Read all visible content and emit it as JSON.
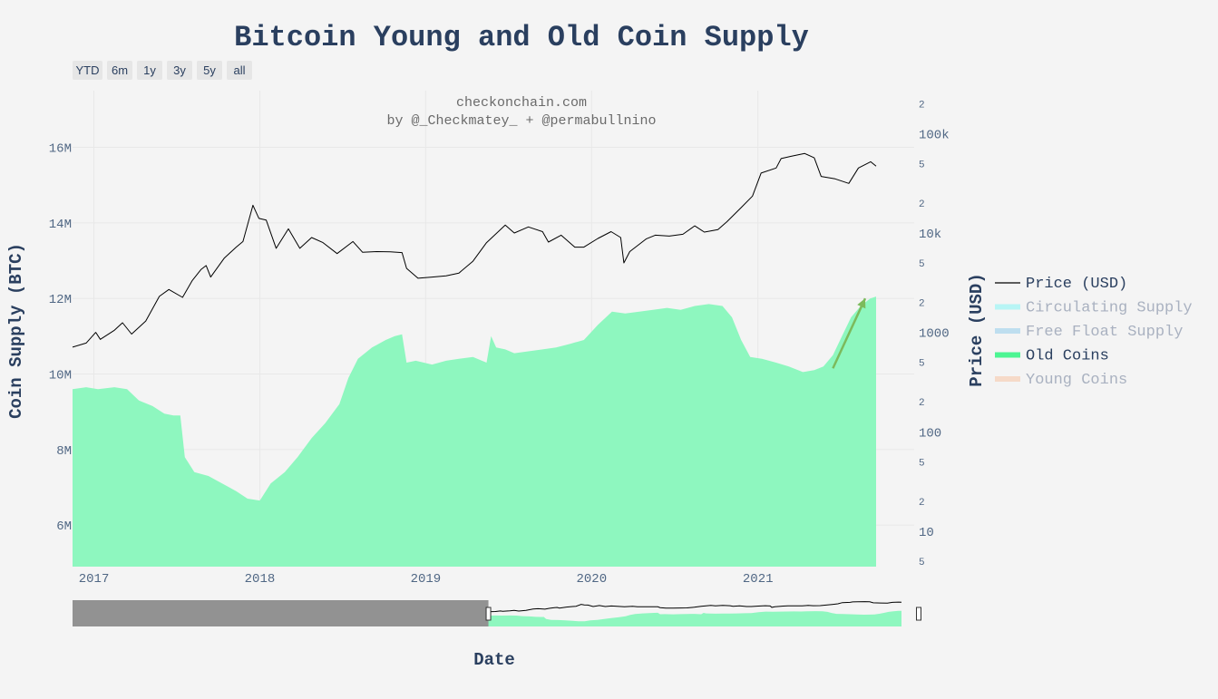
{
  "chart_data": {
    "type": "area",
    "title": "Bitcoin Young and Old Coin Supply",
    "subtitle_line1": "checkonchain.com",
    "subtitle_line2": "by @_Checkmatey_ + @permabullnino",
    "xlabel": "Date",
    "ylabel": "Coin Supply (BTC)",
    "y2label": "Price (USD)",
    "x_ticks": [
      "2017",
      "2018",
      "2019",
      "2020",
      "2021"
    ],
    "x_range": [
      "2016-11-15",
      "2021-09-18"
    ],
    "y_ticks": [
      "6M",
      "8M",
      "10M",
      "12M",
      "14M",
      "16M"
    ],
    "y_tick_values": [
      6000000,
      8000000,
      10000000,
      12000000,
      14000000,
      16000000
    ],
    "ylim": [
      4900000,
      17500000
    ],
    "y2_scale": "log",
    "y2lim": [
      4.4,
      270000
    ],
    "y2_major_ticks": [
      "10",
      "100",
      "1000",
      "10k",
      "100k"
    ],
    "y2_major_values": [
      10,
      100,
      1000,
      10000,
      100000
    ],
    "y2_minor_labels": [
      "2",
      "5"
    ],
    "range_selector": [
      "YTD",
      "6m",
      "1y",
      "3y",
      "5y",
      "all"
    ],
    "legend": [
      {
        "name": "Price (USD)",
        "color": "#000000",
        "visible": true
      },
      {
        "name": "Circulating Supply",
        "color": "#7af5f5",
        "visible": false
      },
      {
        "name": "Free Float Supply",
        "color": "#87c8ea",
        "visible": false
      },
      {
        "name": "Old Coins",
        "color": "#4cf592",
        "visible": true
      },
      {
        "name": "Young Coins",
        "color": "#f8c09b",
        "visible": false
      }
    ],
    "annotation": {
      "type": "arrow",
      "color": "#7cba5c",
      "from": [
        "2021-06-15",
        10150000
      ],
      "to": [
        "2021-08-25",
        12000000
      ]
    },
    "series": [
      {
        "name": "Old Coins",
        "color": "#8ef7bf",
        "x": [
          "2016-11-15",
          "2016-12-15",
          "2017-01-10",
          "2017-02-15",
          "2017-03-15",
          "2017-04-10",
          "2017-05-10",
          "2017-06-05",
          "2017-06-25",
          "2017-07-10",
          "2017-07-20",
          "2017-08-10",
          "2017-09-10",
          "2017-10-10",
          "2017-11-10",
          "2017-12-05",
          "2018-01-01",
          "2018-01-25",
          "2018-02-25",
          "2018-03-25",
          "2018-04-25",
          "2018-05-25",
          "2018-06-25",
          "2018-07-15",
          "2018-08-05",
          "2018-09-05",
          "2018-10-05",
          "2018-10-25",
          "2018-11-10",
          "2018-11-20",
          "2018-12-10",
          "2019-01-15",
          "2019-02-15",
          "2019-03-15",
          "2019-04-15",
          "2019-05-15",
          "2019-05-25",
          "2019-06-05",
          "2019-06-25",
          "2019-07-15",
          "2019-08-15",
          "2019-09-15",
          "2019-10-15",
          "2019-11-15",
          "2019-12-15",
          "2020-01-15",
          "2020-02-15",
          "2020-03-15",
          "2020-04-15",
          "2020-05-15",
          "2020-06-15",
          "2020-07-15",
          "2020-08-15",
          "2020-09-15",
          "2020-10-15",
          "2020-11-05",
          "2020-11-25",
          "2020-12-15",
          "2021-01-10",
          "2021-02-10",
          "2021-03-10",
          "2021-04-10",
          "2021-05-05",
          "2021-05-25",
          "2021-06-15",
          "2021-07-05",
          "2021-07-25",
          "2021-08-15",
          "2021-09-05",
          "2021-09-18"
        ],
        "values": [
          9600000,
          9650000,
          9600000,
          9650000,
          9600000,
          9300000,
          9150000,
          8950000,
          8900000,
          8900000,
          7800000,
          7400000,
          7300000,
          7100000,
          6900000,
          6700000,
          6650000,
          7100000,
          7400000,
          7800000,
          8300000,
          8700000,
          9200000,
          9900000,
          10400000,
          10700000,
          10900000,
          11000000,
          11050000,
          10300000,
          10350000,
          10250000,
          10350000,
          10400000,
          10450000,
          10300000,
          11000000,
          10700000,
          10650000,
          10550000,
          10600000,
          10650000,
          10700000,
          10800000,
          10900000,
          11300000,
          11650000,
          11600000,
          11650000,
          11700000,
          11750000,
          11700000,
          11800000,
          11850000,
          11800000,
          11500000,
          10900000,
          10450000,
          10400000,
          10300000,
          10200000,
          10050000,
          10100000,
          10200000,
          10500000,
          11000000,
          11500000,
          11800000,
          12000000,
          12050000
        ]
      },
      {
        "name": "Price (USD)",
        "color": "#000000",
        "x": [
          "2016-11-15",
          "2016-12-15",
          "2017-01-05",
          "2017-01-15",
          "2017-02-15",
          "2017-03-05",
          "2017-03-25",
          "2017-04-25",
          "2017-05-25",
          "2017-06-15",
          "2017-07-15",
          "2017-08-05",
          "2017-08-25",
          "2017-09-05",
          "2017-09-15",
          "2017-10-15",
          "2017-11-10",
          "2017-11-25",
          "2017-12-17",
          "2017-12-30",
          "2018-01-15",
          "2018-02-06",
          "2018-03-05",
          "2018-03-30",
          "2018-04-25",
          "2018-05-20",
          "2018-06-20",
          "2018-07-25",
          "2018-08-15",
          "2018-09-15",
          "2018-10-15",
          "2018-11-10",
          "2018-11-20",
          "2018-12-15",
          "2019-01-15",
          "2019-02-15",
          "2019-03-15",
          "2019-04-15",
          "2019-05-15",
          "2019-06-25",
          "2019-07-15",
          "2019-08-15",
          "2019-09-15",
          "2019-09-28",
          "2019-10-26",
          "2019-11-25",
          "2019-12-15",
          "2020-01-15",
          "2020-02-13",
          "2020-03-05",
          "2020-03-12",
          "2020-03-25",
          "2020-04-30",
          "2020-05-20",
          "2020-06-20",
          "2020-07-20",
          "2020-08-15",
          "2020-09-05",
          "2020-10-05",
          "2020-10-25",
          "2020-11-25",
          "2020-12-20",
          "2021-01-08",
          "2021-02-10",
          "2021-02-21",
          "2021-03-15",
          "2021-04-14",
          "2021-05-05",
          "2021-05-20",
          "2021-06-20",
          "2021-07-20",
          "2021-08-10",
          "2021-09-06",
          "2021-09-18"
        ],
        "values": [
          710,
          780,
          1000,
          850,
          1050,
          1250,
          960,
          1300,
          2300,
          2700,
          2250,
          3300,
          4300,
          4700,
          3600,
          5600,
          7200,
          8200,
          19000,
          14000,
          13500,
          7000,
          11000,
          7000,
          9000,
          8000,
          6200,
          8200,
          6400,
          6500,
          6450,
          6350,
          4400,
          3500,
          3600,
          3700,
          3950,
          5200,
          8000,
          12000,
          10000,
          11500,
          10300,
          8100,
          9500,
          7200,
          7200,
          8800,
          10300,
          9000,
          5000,
          6500,
          8700,
          9500,
          9300,
          9700,
          11800,
          10200,
          10800,
          13000,
          18000,
          23500,
          40000,
          45000,
          56000,
          59000,
          63000,
          57000,
          37000,
          35000,
          31500,
          45000,
          52000,
          47000
        ]
      }
    ]
  }
}
